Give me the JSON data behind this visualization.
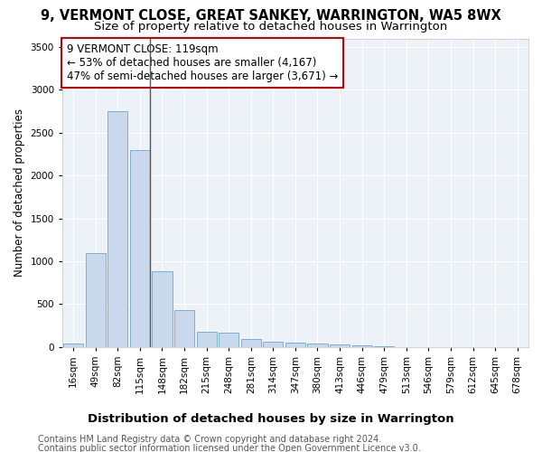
{
  "title": "9, VERMONT CLOSE, GREAT SANKEY, WARRINGTON, WA5 8WX",
  "subtitle": "Size of property relative to detached houses in Warrington",
  "xlabel": "Distribution of detached houses by size in Warrington",
  "ylabel": "Number of detached properties",
  "categories": [
    "16sqm",
    "49sqm",
    "82sqm",
    "115sqm",
    "148sqm",
    "182sqm",
    "215sqm",
    "248sqm",
    "281sqm",
    "314sqm",
    "347sqm",
    "380sqm",
    "413sqm",
    "446sqm",
    "479sqm",
    "513sqm",
    "546sqm",
    "579sqm",
    "612sqm",
    "645sqm",
    "678sqm"
  ],
  "values": [
    45,
    1100,
    2750,
    2300,
    880,
    430,
    175,
    165,
    95,
    65,
    50,
    45,
    30,
    15,
    5,
    0,
    0,
    0,
    0,
    0,
    0
  ],
  "bar_color": "#c8d8ed",
  "bar_edge_color": "#7faed0",
  "highlight_index": 3,
  "highlight_line_color": "#555555",
  "annotation_line1": "9 VERMONT CLOSE: 119sqm",
  "annotation_line2": "← 53% of detached houses are smaller (4,167)",
  "annotation_line3": "47% of semi-detached houses are larger (3,671) →",
  "annotation_box_color": "#ffffff",
  "annotation_box_edge_color": "#cc0000",
  "ylim": [
    0,
    3600
  ],
  "yticks": [
    0,
    500,
    1000,
    1500,
    2000,
    2500,
    3000,
    3500
  ],
  "bg_color": "#edf2f9",
  "grid_color": "#ffffff",
  "footer_line1": "Contains HM Land Registry data © Crown copyright and database right 2024.",
  "footer_line2": "Contains public sector information licensed under the Open Government Licence v3.0.",
  "title_fontsize": 10.5,
  "subtitle_fontsize": 9.5,
  "xlabel_fontsize": 9.5,
  "ylabel_fontsize": 8.5,
  "tick_fontsize": 7.5,
  "annot_fontsize": 8.5,
  "footer_fontsize": 7
}
